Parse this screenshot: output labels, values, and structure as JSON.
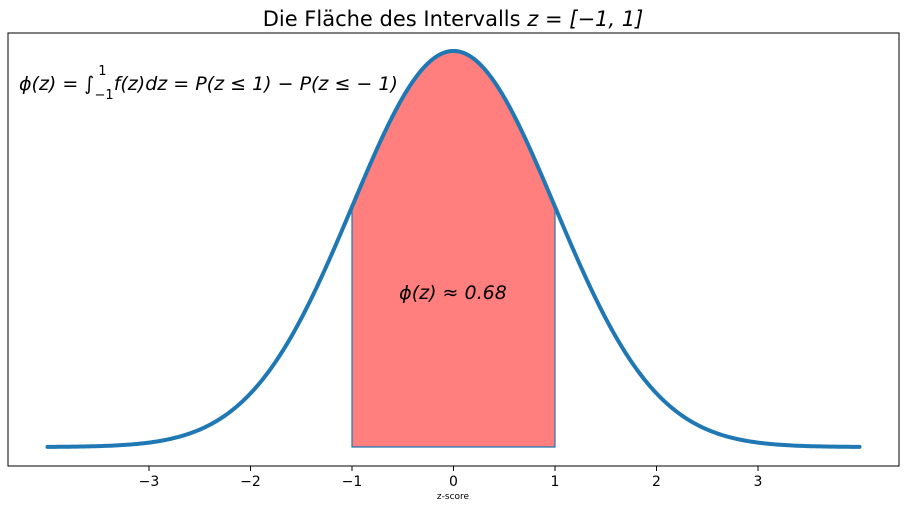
{
  "chart_data": {
    "type": "area",
    "title_prefix": "Die Fläche des Intervalls",
    "title_math": "z = [−1, 1]",
    "xlabel": "z-score",
    "ylabel": "",
    "xlim": [
      -4,
      4
    ],
    "ylim": [
      0,
      0.42
    ],
    "xticks": [
      -3,
      -2,
      -1,
      0,
      1,
      2,
      3
    ],
    "xtick_labels": [
      "−3",
      "−2",
      "−1",
      "0",
      "1",
      "2",
      "3"
    ],
    "grid": false,
    "series": [
      {
        "curve": "standard-normal-pdf",
        "x_range": [
          -4,
          4
        ],
        "peak": 0.3989,
        "color": "#1f77b4"
      }
    ],
    "shaded_region": {
      "x": [
        -1,
        1
      ],
      "color": "#ff7f7f",
      "edge_color": "#1f77b4"
    },
    "annotations": {
      "formula": "ϕ(z) = ∫₋₁¹ f(z)dz = P(z ≤ 1) − P(z ≤ − 1)",
      "formula_parts": {
        "lhs": "ϕ(z) = ",
        "integral": "∫",
        "upper": "1",
        "lower": "−1",
        "rhs": "f(z)dz = P(z ≤ 1) − P(z ≤ − 1)"
      },
      "area_label": "ϕ(z) ≈ 0.68",
      "area_value": 0.68
    }
  }
}
